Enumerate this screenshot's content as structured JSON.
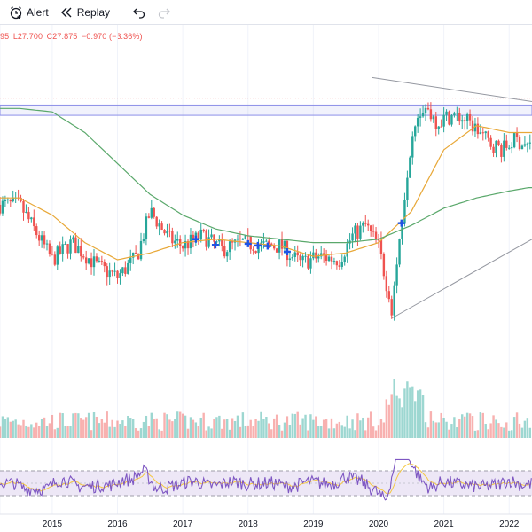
{
  "toolbar": {
    "alert_label": "Alert",
    "replay_label": "Replay",
    "icons": [
      "alert-clock-icon",
      "replay-rewind-icon",
      "undo-icon",
      "redo-icon"
    ]
  },
  "ohlc": {
    "open_fragment": "95",
    "low": "L27.700",
    "close": "C27.875",
    "change": "−0.970 (−3.36%)"
  },
  "colors": {
    "down_text": "#ef5350",
    "candle_up": "#26a69a",
    "candle_down": "#ef5350",
    "ma_fast": "#e8a838",
    "ma_slow": "#5aa86b",
    "trendline": "#9598a1",
    "rsi_line": "#7e57c2",
    "rsi_signal": "#f5c842",
    "rsi_band": "#ede7f6",
    "marker": "#1e53e5"
  },
  "chart_data": {
    "type": "line",
    "x_axis": {
      "tick_labels": [
        "2015",
        "2016",
        "2017",
        "2018",
        "2019",
        "2020",
        "2021",
        "2022"
      ],
      "grid": true
    },
    "price_pane": {
      "series": [
        {
          "name": "",
          "style": "candlestick",
          "x": [
            2014.5,
            2015.0,
            2015.3,
            2015.7,
            2016.0,
            2016.3,
            2016.5,
            2016.8,
            2017.0,
            2017.3,
            2017.6,
            2017.9,
            2018.2,
            2018.5,
            2018.8,
            2019.1,
            2019.4,
            2019.6,
            2019.8,
            2020.0,
            2020.2,
            2020.3,
            2020.45,
            2020.55,
            2020.7,
            2020.9,
            2021.1,
            2021.3,
            2021.5,
            2021.7,
            2021.9,
            2022.1,
            2022.3
          ],
          "y": [
            0.58,
            0.42,
            0.47,
            0.4,
            0.37,
            0.43,
            0.56,
            0.48,
            0.46,
            0.49,
            0.45,
            0.47,
            0.46,
            0.46,
            0.41,
            0.43,
            0.42,
            0.49,
            0.52,
            0.46,
            0.28,
            0.44,
            0.7,
            0.83,
            0.87,
            0.82,
            0.84,
            0.83,
            0.8,
            0.76,
            0.74,
            0.77,
            0.75
          ]
        },
        {
          "name": "",
          "style": "line",
          "role": "fast moving average",
          "x": [
            2014.5,
            2015.0,
            2015.5,
            2016.0,
            2016.5,
            2017.0,
            2017.5,
            2018.0,
            2018.5,
            2019.0,
            2019.5,
            2020.0,
            2020.5,
            2021.0,
            2021.5,
            2022.0,
            2022.3
          ],
          "y": [
            0.6,
            0.55,
            0.47,
            0.42,
            0.44,
            0.47,
            0.48,
            0.47,
            0.46,
            0.43,
            0.44,
            0.47,
            0.56,
            0.74,
            0.81,
            0.79,
            0.79
          ]
        },
        {
          "name": "",
          "style": "line",
          "role": "slow moving average",
          "x": [
            2014.5,
            2015.0,
            2015.5,
            2016.0,
            2016.5,
            2017.0,
            2017.5,
            2018.0,
            2018.5,
            2019.0,
            2019.5,
            2020.0,
            2020.5,
            2021.0,
            2021.5,
            2022.0,
            2022.3
          ],
          "y": [
            0.86,
            0.85,
            0.79,
            0.7,
            0.61,
            0.55,
            0.51,
            0.49,
            0.48,
            0.47,
            0.47,
            0.48,
            0.52,
            0.57,
            0.6,
            0.62,
            0.63
          ]
        }
      ],
      "markers": [
        2017.2,
        2017.5,
        2018.0,
        2018.15,
        2018.3,
        2018.6,
        2020.35
      ],
      "horizontal_band": [
        0.84,
        0.87
      ],
      "dotted_level": 0.89
    },
    "volume_pane": {
      "visible": true
    },
    "rsi_pane": {
      "visible": true,
      "band": [
        30,
        70
      ]
    }
  }
}
